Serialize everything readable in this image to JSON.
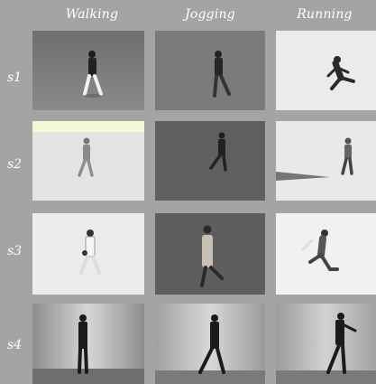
{
  "columns": [
    {
      "label": "Walking"
    },
    {
      "label": "Jogging"
    },
    {
      "label": "Running"
    }
  ],
  "rows": [
    {
      "label": "s1"
    },
    {
      "label": "s2"
    },
    {
      "label": "s3"
    },
    {
      "label": "s4"
    }
  ],
  "scenario_colors": {
    "s1": "#7c7c7c",
    "s2": "#e8e8e8",
    "s3": "#ececec",
    "s4": "#bdbdbd"
  }
}
